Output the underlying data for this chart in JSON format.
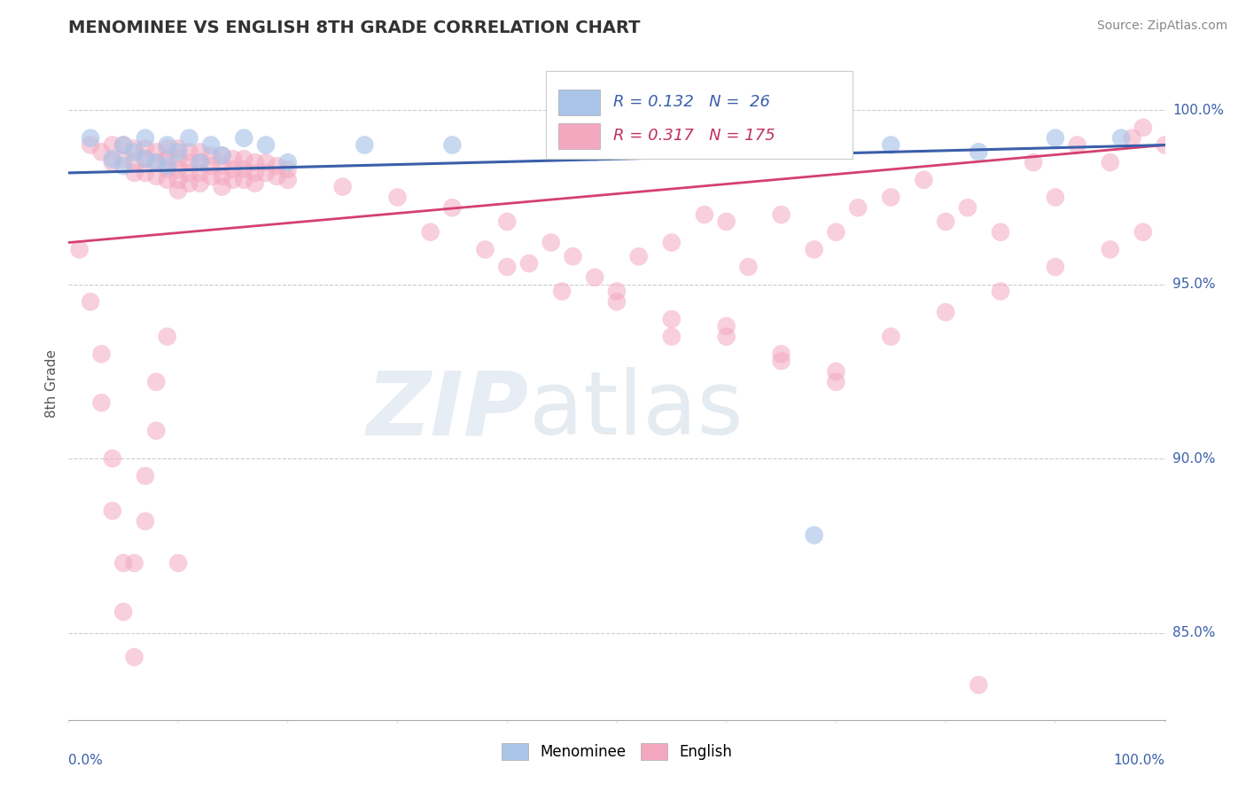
{
  "title": "MENOMINEE VS ENGLISH 8TH GRADE CORRELATION CHART",
  "source": "Source: ZipAtlas.com",
  "ylabel": "8th Grade",
  "xlim": [
    0.0,
    1.0
  ],
  "ylim": [
    0.825,
    1.018
  ],
  "menominee_R": 0.132,
  "menominee_N": 26,
  "english_R": 0.317,
  "english_N": 175,
  "menominee_color": "#aac4e8",
  "english_color": "#f4a8c0",
  "menominee_line_color": "#3a5faa",
  "english_line_color": "#d44070",
  "background_color": "#ffffff",
  "grid_color": "#cccccc",
  "title_color": "#333333",
  "ytick_positions": [
    0.85,
    0.9,
    0.95,
    1.0
  ],
  "ytick_labels": [
    "85.0%",
    "90.0%",
    "95.0%",
    "100.0%"
  ],
  "menominee_line_start_y": 0.982,
  "menominee_line_end_y": 0.99,
  "english_line_start_y": 0.962,
  "english_line_end_y": 0.99,
  "legend_R1": "R = 0.132",
  "legend_N1": "N =  26",
  "legend_R2": "R = 0.317",
  "legend_N2": "N = 175"
}
